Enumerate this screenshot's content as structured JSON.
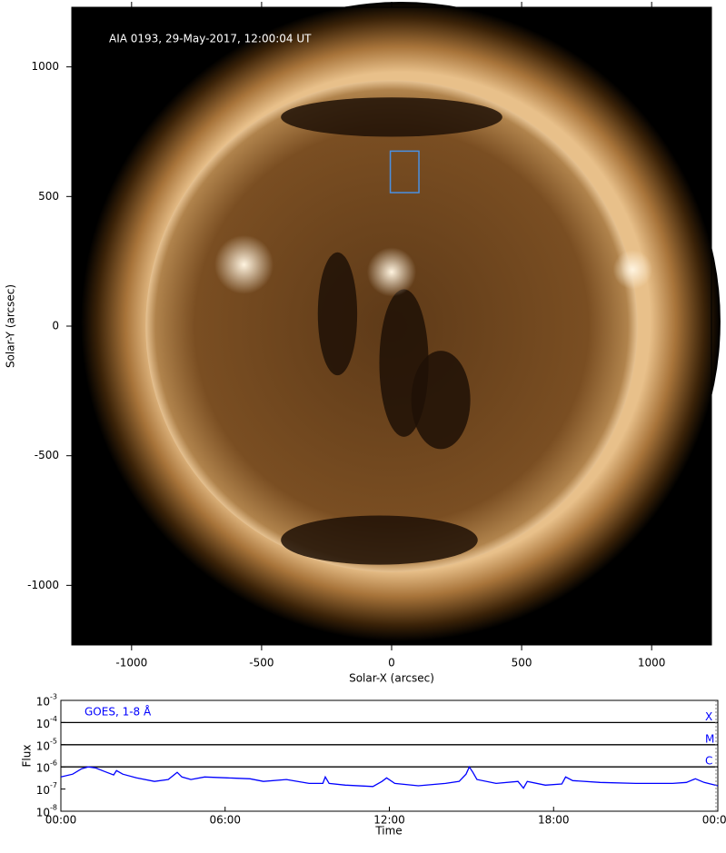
{
  "chart_data": [
    {
      "type": "image",
      "annotation": "AIA 0193, 29-May-2017, 12:00:04 UT",
      "xlabel": "Solar-X (arcsec)",
      "ylabel": "Solar-Y (arcsec)",
      "xlim": [
        -1230,
        1230
      ],
      "ylim": [
        -1230,
        1230
      ],
      "xticks": [
        -1000,
        -500,
        0,
        500,
        1000
      ],
      "yticks": [
        -1000,
        -500,
        0,
        500,
        1000
      ],
      "disk_radius": 946,
      "box": {
        "x": [
          -5,
          105
        ],
        "y": [
          515,
          675
        ],
        "color": "#4a90e2"
      }
    },
    {
      "type": "line",
      "log_y": true,
      "annotation": "GOES, 1-8 Å",
      "xlabel": "Time",
      "ylabel": "Flux",
      "xlim": [
        0,
        24
      ],
      "ylim": [
        1e-08,
        0.001
      ],
      "xticks": [
        {
          "value": 0,
          "label": "00:00"
        },
        {
          "value": 6,
          "label": "06:00"
        },
        {
          "value": 12,
          "label": "12:00"
        },
        {
          "value": 18,
          "label": "18:00"
        },
        {
          "value": 24,
          "label": "00:00"
        }
      ],
      "yticks": [
        {
          "value": 1e-08,
          "label": "10",
          "sup": "-8"
        },
        {
          "value": 1e-07,
          "label": "10",
          "sup": "-7"
        },
        {
          "value": 1e-06,
          "label": "10",
          "sup": "-6"
        },
        {
          "value": 1e-05,
          "label": "10",
          "sup": "-5"
        },
        {
          "value": 0.0001,
          "label": "10",
          "sup": "-4"
        },
        {
          "value": 0.001,
          "label": "10",
          "sup": "-3"
        }
      ],
      "levels": [
        {
          "value": 0.0001,
          "label": "X"
        },
        {
          "value": 1e-05,
          "label": "M"
        },
        {
          "value": 1e-06,
          "label": "C"
        }
      ],
      "x": [
        0,
        0.43,
        0.76,
        1.0,
        1.26,
        1.6,
        1.93,
        2.03,
        2.26,
        2.76,
        3.42,
        3.92,
        4.25,
        4.42,
        4.75,
        5.25,
        6.08,
        6.91,
        7.4,
        8.24,
        9.07,
        9.57,
        9.66,
        9.8,
        10.4,
        11.4,
        11.73,
        11.9,
        12.2,
        13.06,
        14.05,
        14.55,
        14.8,
        14.92,
        15.05,
        15.2,
        15.9,
        16.7,
        16.9,
        17.04,
        17.7,
        18.3,
        18.44,
        18.7,
        19.7,
        21.0,
        22.35,
        22.85,
        23.18,
        23.5,
        24
      ],
      "series": [
        {
          "color": "#0000ff",
          "values": [
            3.5e-07,
            4.7e-07,
            8.3e-07,
            1e-06,
            9e-07,
            6.2e-07,
            4.3e-07,
            6.8e-07,
            4.7e-07,
            3.2e-07,
            2.2e-07,
            2.7e-07,
            5.7e-07,
            3.5e-07,
            2.7e-07,
            3.5e-07,
            3.2e-07,
            2.9e-07,
            2.2e-07,
            2.7e-07,
            1.8e-07,
            1.8e-07,
            3.5e-07,
            1.8e-07,
            1.5e-07,
            1.3e-07,
            2.2e-07,
            3.2e-07,
            1.8e-07,
            1.4e-07,
            1.8e-07,
            2.2e-07,
            4.7e-07,
            1e-06,
            5.7e-07,
            2.7e-07,
            1.8e-07,
            2.2e-07,
            1.1e-07,
            2.2e-07,
            1.5e-07,
            1.7e-07,
            3.5e-07,
            2.4e-07,
            2e-07,
            1.8e-07,
            1.8e-07,
            2e-07,
            2.9e-07,
            2e-07,
            1.4e-07
          ]
        }
      ]
    }
  ]
}
